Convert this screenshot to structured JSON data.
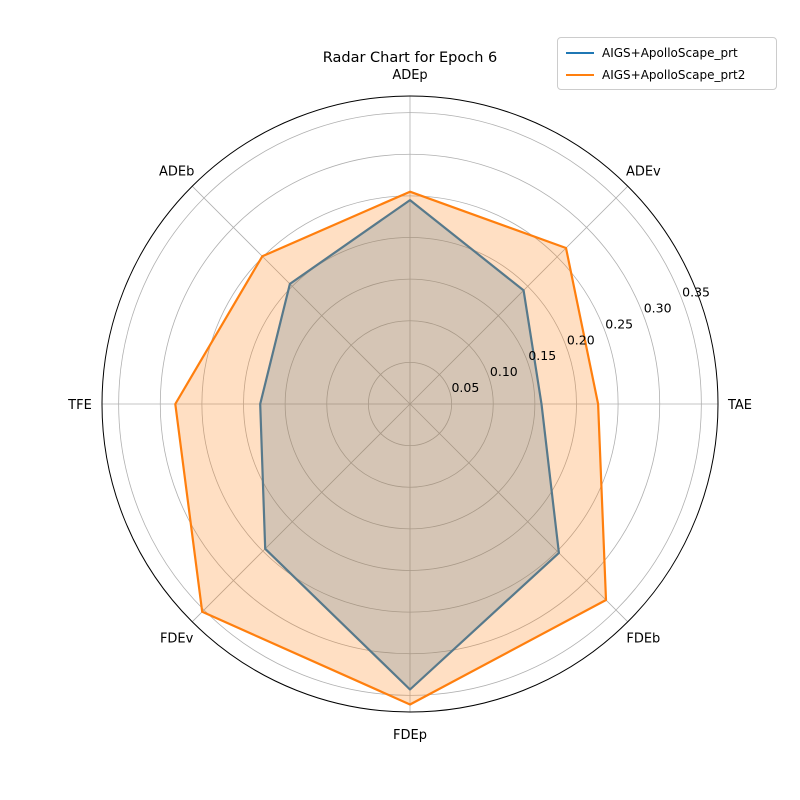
{
  "chart_data": {
    "type": "radar",
    "title": "Radar Chart for Epoch 6",
    "axes": [
      "ADEp",
      "ADEv",
      "TAE",
      "FDEb",
      "FDEp",
      "FDEv",
      "TFE",
      "ADEb"
    ],
    "rticks": [
      "0.05",
      "0.10",
      "0.15",
      "0.20",
      "0.25",
      "0.30",
      "0.35"
    ],
    "rlim": [
      0,
      0.37
    ],
    "grid": true,
    "legend_position": "upper right",
    "series": [
      {
        "name": "AIGS+ApolloScape_prt",
        "color": "#1f77b4",
        "values": [
          0.245,
          0.193,
          0.158,
          0.253,
          0.343,
          0.246,
          0.18,
          0.204
        ]
      },
      {
        "name": "AIGS+ApolloScape_prt2",
        "color": "#ff7f0e",
        "values": [
          0.255,
          0.265,
          0.226,
          0.333,
          0.361,
          0.353,
          0.282,
          0.251
        ]
      }
    ]
  }
}
